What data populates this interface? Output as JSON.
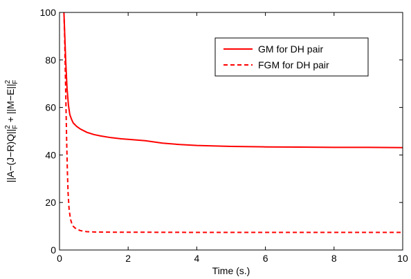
{
  "chart_data": {
    "type": "line",
    "title": "",
    "xlabel": "Time (s.)",
    "ylabel": "||A−(J−R)Q||²F + ||M−E||²F",
    "ylabel_parts": {
      "part1": "||A−(J−R)Q||",
      "sup1": "2",
      "sub1": "F",
      "plus": " + ||M−E||",
      "sup2": "2",
      "sub2": "F"
    },
    "xlim": [
      0,
      10
    ],
    "ylim": [
      0,
      100
    ],
    "xticks": [
      0,
      2,
      4,
      6,
      8,
      10
    ],
    "xtick_labels": [
      "0",
      "2",
      "4",
      "6",
      "8",
      "10"
    ],
    "yticks": [
      0,
      20,
      40,
      60,
      80,
      100
    ],
    "ytick_labels": [
      "0",
      "20",
      "40",
      "60",
      "80",
      "100"
    ],
    "grid": false,
    "legend_position": "top-right",
    "colors": {
      "series": "#ff0000",
      "axis": "#000000"
    },
    "series": [
      {
        "name": "GM for DH pair",
        "style": "solid",
        "x": [
          0.13,
          0.15,
          0.18,
          0.22,
          0.26,
          0.3,
          0.35,
          0.4,
          0.5,
          0.6,
          0.8,
          1.0,
          1.2,
          1.5,
          1.8,
          2.0,
          2.5,
          3.0,
          3.5,
          4.0,
          5.0,
          6.0,
          7.0,
          8.0,
          9.0,
          10.0
        ],
        "y": [
          100,
          92,
          80,
          68,
          61,
          57,
          55,
          53.5,
          52,
          51,
          49.5,
          48.6,
          48,
          47.3,
          46.8,
          46.6,
          46,
          45,
          44.4,
          44,
          43.6,
          43.4,
          43.3,
          43.2,
          43.2,
          43.1
        ]
      },
      {
        "name": "FGM for DH pair",
        "style": "dashed",
        "x": [
          0.13,
          0.15,
          0.17,
          0.19,
          0.21,
          0.23,
          0.25,
          0.28,
          0.32,
          0.36,
          0.4,
          0.45,
          0.5,
          0.6,
          0.7,
          0.8,
          1.0,
          1.5,
          2.0,
          4.0,
          6.0,
          8.0,
          10.0
        ],
        "y": [
          100,
          90,
          75,
          60,
          45,
          33,
          24,
          17,
          13,
          11,
          10,
          9.3,
          8.8,
          8.2,
          7.9,
          7.7,
          7.6,
          7.5,
          7.5,
          7.4,
          7.4,
          7.4,
          7.4
        ]
      }
    ]
  }
}
